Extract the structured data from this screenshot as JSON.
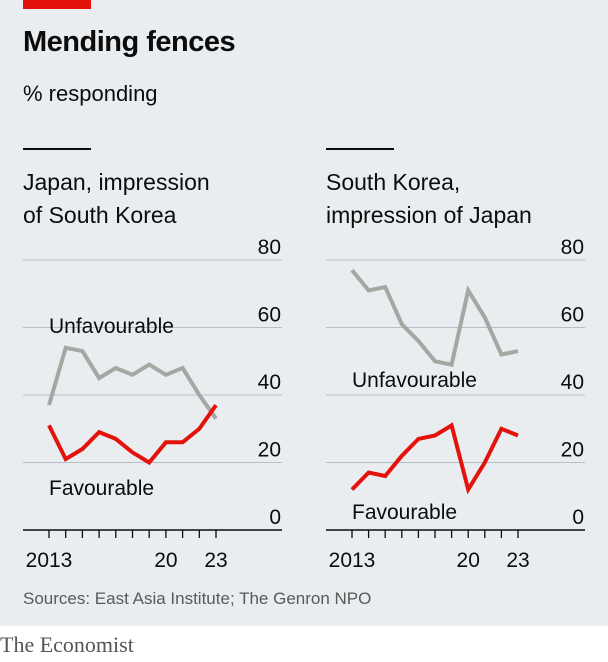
{
  "header": {
    "title": "Mending fences",
    "subtitle": "% responding"
  },
  "footer": {
    "source": "Sources: East Asia Institute; The Genron NPO",
    "brand": "The Economist"
  },
  "colors": {
    "unfavourable": "#a3a8a3",
    "favourable": "#e3120b",
    "grid": "#b7c0c8",
    "axis": "#0c0c0c",
    "background": "#e9edf0",
    "accent": "#e3120b"
  },
  "chart_data": [
    {
      "type": "line",
      "title_lines": [
        "Japan, impression",
        "of South Korea"
      ],
      "x": [
        2013,
        2014,
        2015,
        2016,
        2017,
        2018,
        2019,
        2020,
        2021,
        2022,
        2023
      ],
      "x_tick_values": [
        2013,
        2014,
        2015,
        2016,
        2017,
        2018,
        2019,
        2020,
        2021,
        2022,
        2023
      ],
      "x_tick_labels": [
        {
          "value": 2013,
          "label": "2013"
        },
        {
          "value": 2020,
          "label": "20"
        },
        {
          "value": 2023,
          "label": "23"
        }
      ],
      "ylim": [
        0,
        80
      ],
      "y_ticks": [
        0,
        20,
        40,
        60,
        80
      ],
      "y_axis_side": "right",
      "grid": true,
      "series": [
        {
          "name": "Unfavourable",
          "color_key": "unfavourable",
          "values": [
            37,
            54,
            53,
            45,
            48,
            46,
            49,
            46,
            48,
            40,
            33
          ]
        },
        {
          "name": "Favourable",
          "color_key": "favourable",
          "values": [
            31,
            21,
            24,
            29,
            27,
            23,
            20,
            26,
            26,
            30,
            37
          ]
        }
      ],
      "annotations": [
        {
          "text": "Unfavourable",
          "series": "Unfavourable"
        },
        {
          "text": "Favourable",
          "series": "Favourable"
        }
      ]
    },
    {
      "type": "line",
      "title_lines": [
        "South Korea,",
        "impression of Japan"
      ],
      "x": [
        2013,
        2014,
        2015,
        2016,
        2017,
        2018,
        2019,
        2020,
        2021,
        2022,
        2023
      ],
      "x_tick_values": [
        2013,
        2014,
        2015,
        2016,
        2017,
        2018,
        2019,
        2020,
        2021,
        2022,
        2023
      ],
      "x_tick_labels": [
        {
          "value": 2013,
          "label": "2013"
        },
        {
          "value": 2020,
          "label": "20"
        },
        {
          "value": 2023,
          "label": "23"
        }
      ],
      "ylim": [
        0,
        80
      ],
      "y_ticks": [
        0,
        20,
        40,
        60,
        80
      ],
      "y_axis_side": "right",
      "grid": true,
      "series": [
        {
          "name": "Unfavourable",
          "color_key": "unfavourable",
          "values": [
            77,
            71,
            72,
            61,
            56,
            50,
            49,
            71,
            63,
            52,
            53
          ]
        },
        {
          "name": "Favourable",
          "color_key": "favourable",
          "values": [
            12,
            17,
            16,
            22,
            27,
            28,
            31,
            12,
            20,
            30,
            28
          ]
        }
      ],
      "annotations": [
        {
          "text": "Unfavourable",
          "series": "Unfavourable"
        },
        {
          "text": "Favourable",
          "series": "Favourable"
        }
      ]
    }
  ]
}
